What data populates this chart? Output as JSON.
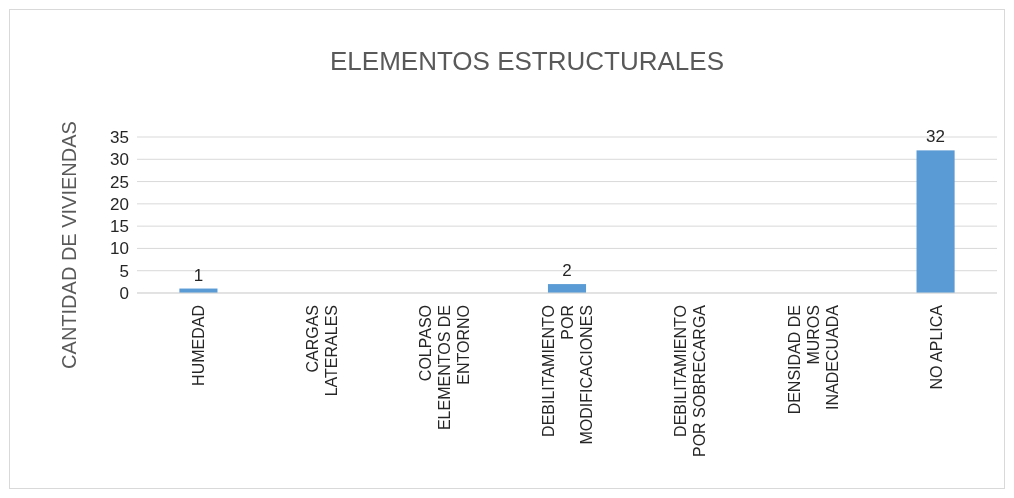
{
  "chart_data": {
    "type": "bar",
    "title": "ELEMENTOS ESTRUCTURALES",
    "ylabel": "CANTIDAD DE VIVIENDAS",
    "categories": [
      "HUMEDAD",
      "CARGAS LATERALES",
      "COLPASO ELEMENTOS DE ENTORNO",
      "DEBILITAMIENTO POR MODIFICACIONES",
      "DEBILITAMIENTO POR SOBRECARGA",
      "DENSIDAD DE MUROS INADECUADA",
      "NO APLICA"
    ],
    "values": [
      1,
      0,
      0,
      2,
      0,
      0,
      32
    ],
    "color": "#5b9bd5",
    "value_labels": [
      "1",
      null,
      null,
      "2",
      null,
      null,
      "32"
    ],
    "ylim": [
      0,
      35
    ],
    "yticks": [
      0,
      5,
      10,
      15,
      20,
      25,
      30,
      35
    ],
    "grid": "y"
  }
}
